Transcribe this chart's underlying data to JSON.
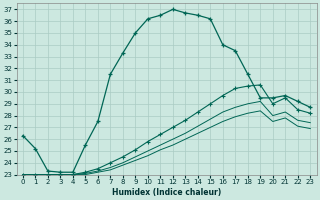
{
  "bg_color": "#cce8e0",
  "grid_color": "#aaccc4",
  "line_color": "#006655",
  "xlabel": "Humidex (Indice chaleur)",
  "xlim": [
    -0.5,
    23.5
  ],
  "ylim": [
    23,
    37.5
  ],
  "yticks": [
    23,
    24,
    25,
    26,
    27,
    28,
    29,
    30,
    31,
    32,
    33,
    34,
    35,
    36,
    37
  ],
  "xticks": [
    0,
    1,
    2,
    3,
    4,
    5,
    6,
    7,
    8,
    9,
    10,
    11,
    12,
    13,
    14,
    15,
    16,
    17,
    18,
    19,
    20,
    21,
    22,
    23
  ],
  "line1_x": [
    0,
    1,
    2,
    3,
    4,
    5,
    6,
    7,
    8,
    9,
    10,
    11,
    12,
    13,
    14,
    15,
    16,
    17,
    18,
    19,
    20,
    21,
    22,
    23
  ],
  "line1_y": [
    26.3,
    25.2,
    23.3,
    23.2,
    23.2,
    25.5,
    27.5,
    31.5,
    33.3,
    35.0,
    36.2,
    36.5,
    37.0,
    36.7,
    36.5,
    36.2,
    34.0,
    33.5,
    31.5,
    29.5,
    29.5,
    29.7,
    29.2,
    28.7
  ],
  "line2_x": [
    0,
    1,
    2,
    3,
    4,
    5,
    6,
    7,
    8,
    9,
    10,
    11,
    12,
    13,
    14,
    15,
    16,
    17,
    18,
    19,
    20,
    21,
    22,
    23
  ],
  "line2_y": [
    23.0,
    23.0,
    23.0,
    23.0,
    23.0,
    23.2,
    23.5,
    24.0,
    24.5,
    25.1,
    25.8,
    26.4,
    27.0,
    27.6,
    28.3,
    29.0,
    29.7,
    30.3,
    30.5,
    30.6,
    29.0,
    29.5,
    28.5,
    28.2
  ],
  "line3_x": [
    0,
    1,
    2,
    3,
    4,
    5,
    6,
    7,
    8,
    9,
    10,
    11,
    12,
    13,
    14,
    15,
    16,
    17,
    18,
    19,
    20,
    21,
    22,
    23
  ],
  "line3_y": [
    23.0,
    23.0,
    23.0,
    23.0,
    23.0,
    23.1,
    23.3,
    23.6,
    24.0,
    24.5,
    25.0,
    25.5,
    26.0,
    26.5,
    27.1,
    27.7,
    28.3,
    28.7,
    29.0,
    29.2,
    28.0,
    28.3,
    27.6,
    27.4
  ],
  "line4_x": [
    0,
    1,
    2,
    3,
    4,
    5,
    6,
    7,
    8,
    9,
    10,
    11,
    12,
    13,
    14,
    15,
    16,
    17,
    18,
    19,
    20,
    21,
    22,
    23
  ],
  "line4_y": [
    23.0,
    23.0,
    23.0,
    23.0,
    23.0,
    23.0,
    23.2,
    23.4,
    23.8,
    24.2,
    24.6,
    25.1,
    25.5,
    26.0,
    26.5,
    27.0,
    27.5,
    27.9,
    28.2,
    28.4,
    27.5,
    27.8,
    27.1,
    26.9
  ]
}
